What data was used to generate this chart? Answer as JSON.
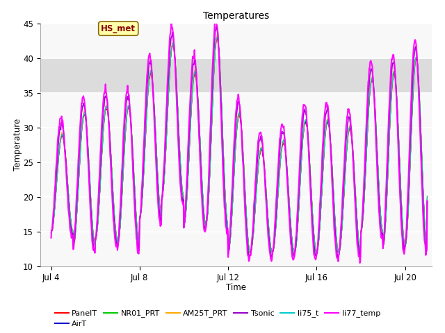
{
  "title": "Temperatures",
  "xlabel": "Time",
  "ylabel": "Temperature",
  "ylim": [
    10,
    45
  ],
  "xlim_start": 3.5,
  "xlim_end": 21.2,
  "bg_color": "#ffffff",
  "plot_bg_color": "#f8f8f8",
  "series": {
    "PanelT": {
      "color": "#ff0000",
      "lw": 0.8,
      "zorder": 3
    },
    "AirT": {
      "color": "#0000cc",
      "lw": 0.8,
      "zorder": 3
    },
    "NR01_PRT": {
      "color": "#00cc00",
      "lw": 0.8,
      "zorder": 3
    },
    "AM25T_PRT": {
      "color": "#ffaa00",
      "lw": 0.8,
      "zorder": 3
    },
    "Tsonic": {
      "color": "#9900cc",
      "lw": 1.2,
      "zorder": 4
    },
    "li75_t": {
      "color": "#00cccc",
      "lw": 0.8,
      "zorder": 3
    },
    "li77_temp": {
      "color": "#ff00ff",
      "lw": 1.5,
      "zorder": 5
    }
  },
  "legend_order": [
    "PanelT",
    "AirT",
    "NR01_PRT",
    "AM25T_PRT",
    "Tsonic",
    "li75_t",
    "li77_temp"
  ],
  "xtick_labels": [
    "Jul 4",
    "Jul 8",
    "Jul 12",
    "Jul 16",
    "Jul 20"
  ],
  "xtick_positions": [
    4,
    8,
    12,
    16,
    20
  ],
  "ytick_positions": [
    10,
    15,
    20,
    25,
    30,
    35,
    40,
    45
  ],
  "shaded_band": [
    35,
    40
  ],
  "annotation_text": "HS_met"
}
